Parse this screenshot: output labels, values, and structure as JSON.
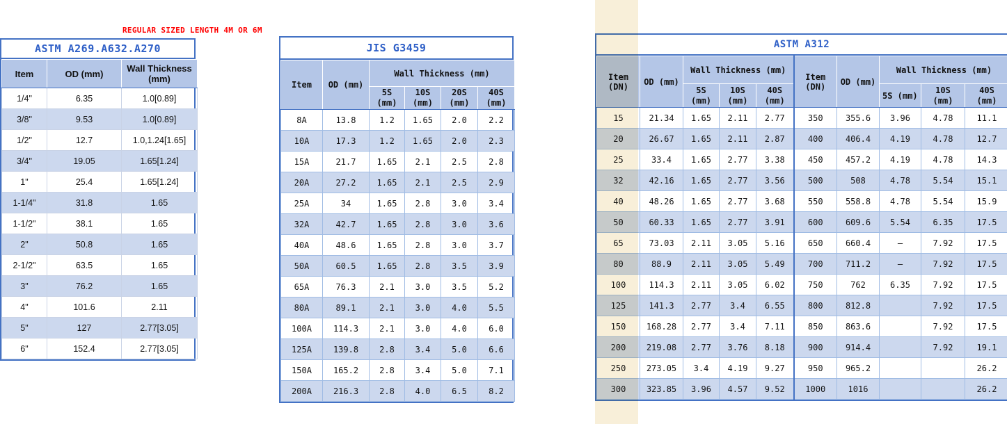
{
  "annotation": {
    "text": "REGULAR SIZED LENGTH 4M OR 6M"
  },
  "colors": {
    "title_blue": "#2E5FC7",
    "annotation_red": "#FF0000",
    "header_bg": "#B4C6E7",
    "row_stripe": "#CCD8EE",
    "border_dark": "#4472C4",
    "grid_light": "#A0BCE4",
    "cream_band": "#F8EFD9"
  },
  "tables": {
    "astm_a269": {
      "title": "ASTM A269.A632.A270",
      "columns": [
        "Item",
        "OD (mm)",
        "Wall Thickness (mm)"
      ],
      "rows": [
        [
          "1/4\"",
          "6.35",
          "1.0[0.89]"
        ],
        [
          "3/8\"",
          "9.53",
          "1.0[0.89]"
        ],
        [
          "1/2\"",
          "12.7",
          "1.0,1.24[1.65]"
        ],
        [
          "3/4\"",
          "19.05",
          "1.65[1.24]"
        ],
        [
          "1\"",
          "25.4",
          "1.65[1.24]"
        ],
        [
          "1-1/4\"",
          "31.8",
          "1.65"
        ],
        [
          "1-1/2\"",
          "38.1",
          "1.65"
        ],
        [
          "2\"",
          "50.8",
          "1.65"
        ],
        [
          "2-1/2\"",
          "63.5",
          "1.65"
        ],
        [
          "3\"",
          "76.2",
          "1.65"
        ],
        [
          "4\"",
          "101.6",
          "2.11"
        ],
        [
          "5\"",
          "127",
          "2.77[3.05]"
        ],
        [
          "6\"",
          "152.4",
          "2.77[3.05]"
        ]
      ]
    },
    "jis_g3459": {
      "title": "JIS G3459",
      "header": {
        "item": "Item",
        "od": "OD (mm)",
        "wall": "Wall Thickness (mm)"
      },
      "subcols": [
        {
          "size": "5S",
          "unit": "(mm)"
        },
        {
          "size": "10S",
          "unit": "(mm)"
        },
        {
          "size": "20S",
          "unit": "(mm)"
        },
        {
          "size": "40S",
          "unit": "(mm)"
        }
      ],
      "rows": [
        [
          "8A",
          "13.8",
          "1.2",
          "1.65",
          "2.0",
          "2.2"
        ],
        [
          "10A",
          "17.3",
          "1.2",
          "1.65",
          "2.0",
          "2.3"
        ],
        [
          "15A",
          "21.7",
          "1.65",
          "2.1",
          "2.5",
          "2.8"
        ],
        [
          "20A",
          "27.2",
          "1.65",
          "2.1",
          "2.5",
          "2.9"
        ],
        [
          "25A",
          "34",
          "1.65",
          "2.8",
          "3.0",
          "3.4"
        ],
        [
          "32A",
          "42.7",
          "1.65",
          "2.8",
          "3.0",
          "3.6"
        ],
        [
          "40A",
          "48.6",
          "1.65",
          "2.8",
          "3.0",
          "3.7"
        ],
        [
          "50A",
          "60.5",
          "1.65",
          "2.8",
          "3.5",
          "3.9"
        ],
        [
          "65A",
          "76.3",
          "2.1",
          "3.0",
          "3.5",
          "5.2"
        ],
        [
          "80A",
          "89.1",
          "2.1",
          "3.0",
          "4.0",
          "5.5"
        ],
        [
          "100A",
          "114.3",
          "2.1",
          "3.0",
          "4.0",
          "6.0"
        ],
        [
          "125A",
          "139.8",
          "2.8",
          "3.4",
          "5.0",
          "6.6"
        ],
        [
          "150A",
          "165.2",
          "2.8",
          "3.4",
          "5.0",
          "7.1"
        ],
        [
          "200A",
          "216.3",
          "2.8",
          "4.0",
          "6.5",
          "8.2"
        ]
      ]
    },
    "astm_a312": {
      "title": "ASTM A312",
      "left_half": {
        "header": {
          "item": "Item (DN)",
          "od": "OD (mm)",
          "wall": "Wall Thickness (mm)"
        },
        "subcols": [
          {
            "size": "5S",
            "unit": "(mm)"
          },
          {
            "size": "10S",
            "unit": "(mm)"
          },
          {
            "size": "40S",
            "unit": "(mm)"
          }
        ],
        "rows": [
          [
            "15",
            "21.34",
            "1.65",
            "2.11",
            "2.77"
          ],
          [
            "20",
            "26.67",
            "1.65",
            "2.11",
            "2.87"
          ],
          [
            "25",
            "33.4",
            "1.65",
            "2.77",
            "3.38"
          ],
          [
            "32",
            "42.16",
            "1.65",
            "2.77",
            "3.56"
          ],
          [
            "40",
            "48.26",
            "1.65",
            "2.77",
            "3.68"
          ],
          [
            "50",
            "60.33",
            "1.65",
            "2.77",
            "3.91"
          ],
          [
            "65",
            "73.03",
            "2.11",
            "3.05",
            "5.16"
          ],
          [
            "80",
            "88.9",
            "2.11",
            "3.05",
            "5.49"
          ],
          [
            "100",
            "114.3",
            "2.11",
            "3.05",
            "6.02"
          ],
          [
            "125",
            "141.3",
            "2.77",
            "3.4",
            "6.55"
          ],
          [
            "150",
            "168.28",
            "2.77",
            "3.4",
            "7.11"
          ],
          [
            "200",
            "219.08",
            "2.77",
            "3.76",
            "8.18"
          ],
          [
            "250",
            "273.05",
            "3.4",
            "4.19",
            "9.27"
          ],
          [
            "300",
            "323.85",
            "3.96",
            "4.57",
            "9.52"
          ]
        ]
      },
      "right_half": {
        "header": {
          "item": "Item (DN)",
          "od": "OD (mm)",
          "wall": "Wall Thickness (mm)"
        },
        "subcols": [
          {
            "size": "5S (mm)",
            "unit": ""
          },
          {
            "size": "10S",
            "unit": "(mm)"
          },
          {
            "size": "40S",
            "unit": "(mm)"
          }
        ],
        "rows": [
          [
            "350",
            "355.6",
            "3.96",
            "4.78",
            "11.1"
          ],
          [
            "400",
            "406.4",
            "4.19",
            "4.78",
            "12.7"
          ],
          [
            "450",
            "457.2",
            "4.19",
            "4.78",
            "14.3"
          ],
          [
            "500",
            "508",
            "4.78",
            "5.54",
            "15.1"
          ],
          [
            "550",
            "558.8",
            "4.78",
            "5.54",
            "15.9"
          ],
          [
            "600",
            "609.6",
            "5.54",
            "6.35",
            "17.5"
          ],
          [
            "650",
            "660.4",
            "–",
            "7.92",
            "17.5"
          ],
          [
            "700",
            "711.2",
            "–",
            "7.92",
            "17.5"
          ],
          [
            "750",
            "762",
            "6.35",
            "7.92",
            "17.5"
          ],
          [
            "800",
            "812.8",
            "",
            "7.92",
            "17.5"
          ],
          [
            "850",
            "863.6",
            "",
            "7.92",
            "17.5"
          ],
          [
            "900",
            "914.4",
            "",
            "7.92",
            "19.1"
          ],
          [
            "950",
            "965.2",
            "",
            "",
            "26.2"
          ],
          [
            "1000",
            "1016",
            "",
            "",
            "26.2"
          ]
        ]
      }
    }
  }
}
